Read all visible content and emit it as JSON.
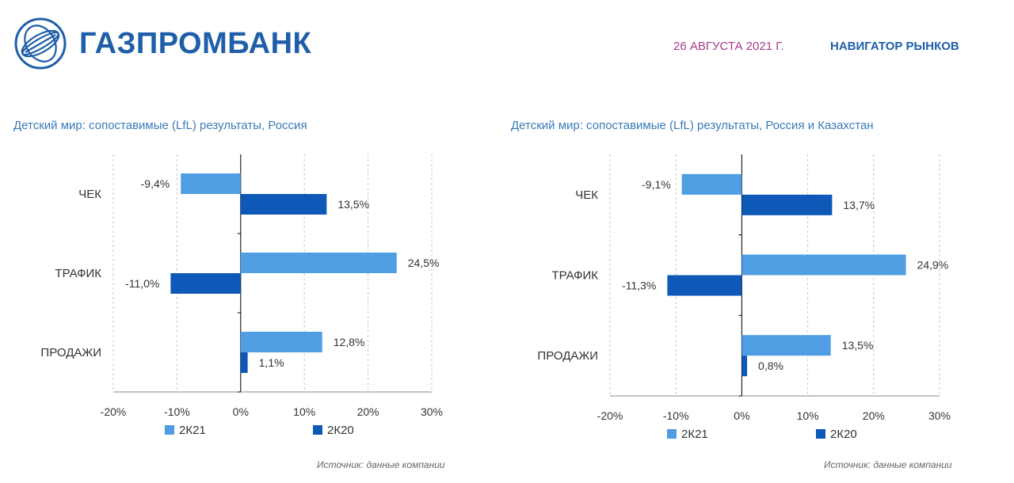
{
  "header": {
    "brand": "ГАЗПРОМБАНК",
    "date": "26 АВГУСТА 2021 Г.",
    "section": "НАВИГАТОР РЫНКОВ"
  },
  "colors": {
    "series_light": "#4f9ee3",
    "series_dark": "#0e58b7",
    "brand": "#1f5ea8",
    "date": "#a43a8a",
    "title": "#3a7bb5"
  },
  "chart_data": [
    {
      "type": "bar",
      "orientation": "horizontal",
      "title": "Детский мир: сопоставимые (LfL) результаты, Россия",
      "categories": [
        "ЧЕК",
        "ТРАФИК",
        "ПРОДАЖИ"
      ],
      "series": [
        {
          "name": "2К21",
          "values": [
            -9.4,
            24.5,
            12.8
          ],
          "labels": [
            "-9,4%",
            "24,5%",
            "12,8%"
          ]
        },
        {
          "name": "2К20",
          "values": [
            13.5,
            -11.0,
            1.1
          ],
          "labels": [
            "13,5%",
            "-11,0%",
            "1,1%"
          ]
        }
      ],
      "xlim": [
        -20,
        30
      ],
      "xticks": [
        "-20%",
        "-10%",
        "0%",
        "10%",
        "20%",
        "30%"
      ],
      "grid": "vertical dashed",
      "legend": "bottom",
      "source": "Источник: данные компании"
    },
    {
      "type": "bar",
      "orientation": "horizontal",
      "title": "Детский мир: сопоставимые (LfL) результаты, Россия и Казахстан",
      "categories": [
        "ЧЕК",
        "ТРАФИК",
        "ПРОДАЖИ"
      ],
      "series": [
        {
          "name": "2К21",
          "values": [
            -9.1,
            24.9,
            13.5
          ],
          "labels": [
            "-9,1%",
            "24,9%",
            "13,5%"
          ]
        },
        {
          "name": "2К20",
          "values": [
            13.7,
            -11.3,
            0.8
          ],
          "labels": [
            "13,7%",
            "-11,3%",
            "0,8%"
          ]
        }
      ],
      "xlim": [
        -20,
        30
      ],
      "xticks": [
        "-20%",
        "-10%",
        "0%",
        "10%",
        "20%",
        "30%"
      ],
      "grid": "vertical dashed",
      "legend": "bottom",
      "source": "Источник: данные компании"
    }
  ]
}
